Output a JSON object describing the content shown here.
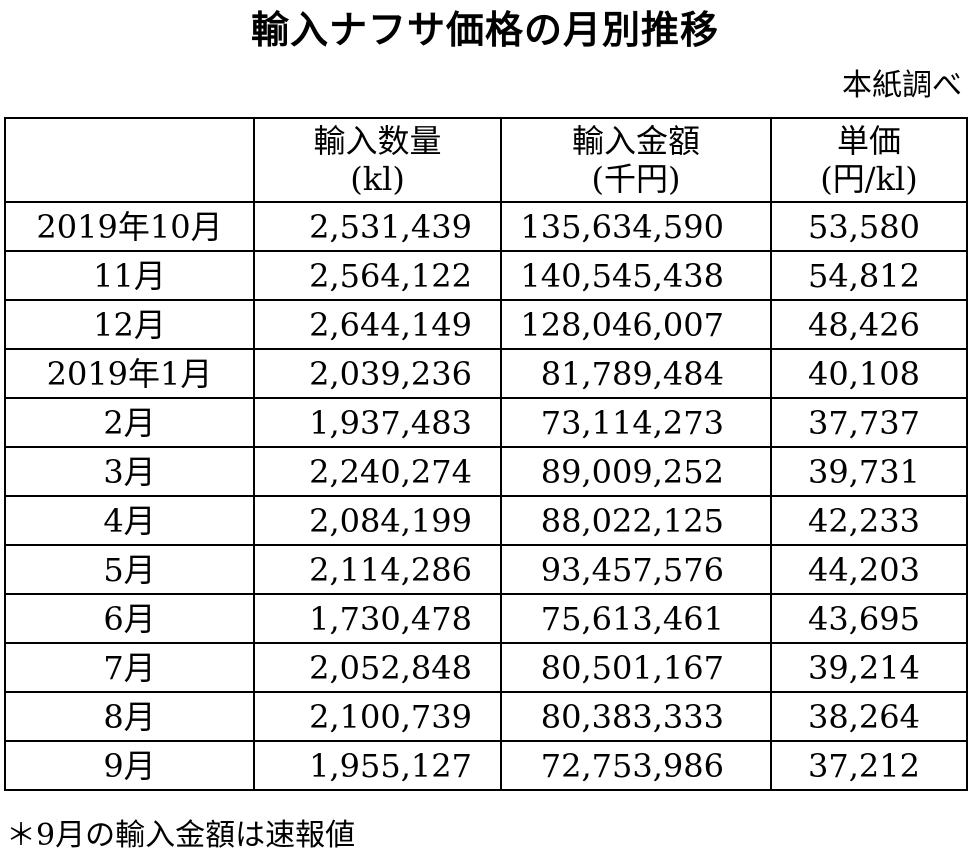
{
  "title": "輸入ナフサ価格の月別推移",
  "source": "本紙調べ",
  "table": {
    "headers": [
      {
        "line1": "",
        "line2": ""
      },
      {
        "line1": "輸入数量",
        "line2": "(kl)"
      },
      {
        "line1": "輸入金額",
        "line2": "(千円)"
      },
      {
        "line1": "単価",
        "line2": "(円/kl)"
      }
    ],
    "rows": [
      {
        "period": "2019年10月",
        "quantity": "2,531,439",
        "amount": "135,634,590",
        "unit_price": "53,580"
      },
      {
        "period": "11月",
        "quantity": "2,564,122",
        "amount": "140,545,438",
        "unit_price": "54,812"
      },
      {
        "period": "12月",
        "quantity": "2,644,149",
        "amount": "128,046,007",
        "unit_price": "48,426"
      },
      {
        "period": "2019年1月",
        "quantity": "2,039,236",
        "amount": "81,789,484",
        "unit_price": "40,108"
      },
      {
        "period": "2月",
        "quantity": "1,937,483",
        "amount": "73,114,273",
        "unit_price": "37,737"
      },
      {
        "period": "3月",
        "quantity": "2,240,274",
        "amount": "89,009,252",
        "unit_price": "39,731"
      },
      {
        "period": "4月",
        "quantity": "2,084,199",
        "amount": "88,022,125",
        "unit_price": "42,233"
      },
      {
        "period": "5月",
        "quantity": "2,114,286",
        "amount": "93,457,576",
        "unit_price": "44,203"
      },
      {
        "period": "6月",
        "quantity": "1,730,478",
        "amount": "75,613,461",
        "unit_price": "43,695"
      },
      {
        "period": "7月",
        "quantity": "2,052,848",
        "amount": "80,501,167",
        "unit_price": "39,214"
      },
      {
        "period": "8月",
        "quantity": "2,100,739",
        "amount": "80,383,333",
        "unit_price": "38,264"
      },
      {
        "period": "9月",
        "quantity": "1,955,127",
        "amount": "72,753,986",
        "unit_price": "37,212"
      }
    ]
  },
  "note": "＊9月の輸入金額は速報値"
}
